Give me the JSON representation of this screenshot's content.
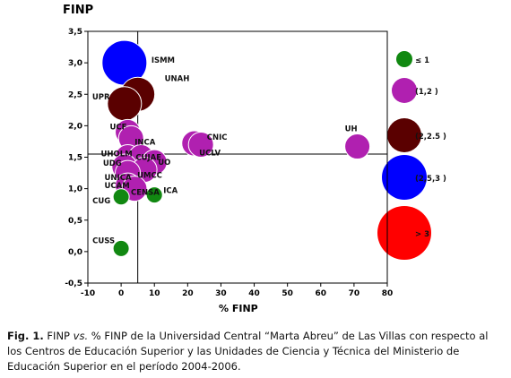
{
  "chart_data": {
    "type": "scatter",
    "ylabel": "FINP",
    "xlabel": "% FINP",
    "xlim": [
      -10,
      80
    ],
    "ylim": [
      -0.5,
      3.5
    ],
    "xticks": [
      "-10",
      "0",
      "10",
      "20",
      "30",
      "40",
      "50",
      "60",
      "70",
      "80"
    ],
    "yticks": [
      "-0,5",
      "0,0",
      "0,5",
      "1,0",
      "1,5",
      "2,0",
      "2,5",
      "3,0",
      "3,5"
    ],
    "reference_lines": {
      "x": 5,
      "y": 1.55
    },
    "points": [
      {
        "label": "ISMM",
        "x": 1,
        "y": 3.0,
        "color": "#0000ff",
        "size_class": 4
      },
      {
        "label": "UNAH",
        "x": 5,
        "y": 2.5,
        "color": "#5a0000",
        "size_class": 3
      },
      {
        "label": "UPR",
        "x": 1,
        "y": 2.35,
        "color": "#5a0000",
        "size_class": 3
      },
      {
        "label": "UCF",
        "x": 2,
        "y": 1.9,
        "color": "#b020b0",
        "size_class": 2
      },
      {
        "label": "INCA",
        "x": 3,
        "y": 1.8,
        "color": "#b020b0",
        "size_class": 2
      },
      {
        "label": "CNIC",
        "x": 22,
        "y": 1.72,
        "color": "#b020b0",
        "size_class": 2
      },
      {
        "label": "UCLV",
        "x": 24,
        "y": 1.7,
        "color": "#b020b0",
        "size_class": 2
      },
      {
        "label": "UH",
        "x": 71,
        "y": 1.67,
        "color": "#b020b0",
        "size_class": 2
      },
      {
        "label": "UHOLM",
        "x": 2,
        "y": 1.5,
        "color": "#b020b0",
        "size_class": 2
      },
      {
        "label": "CUJAE",
        "x": 6,
        "y": 1.5,
        "color": "#b020b0",
        "size_class": 2
      },
      {
        "label": "UO",
        "x": 10,
        "y": 1.42,
        "color": "#b020b0",
        "size_class": 2
      },
      {
        "label": "UDG",
        "x": 1,
        "y": 1.35,
        "color": "#b020b0",
        "size_class": 2
      },
      {
        "label": "UMCC",
        "x": 7,
        "y": 1.3,
        "color": "#b020b0",
        "size_class": 2
      },
      {
        "label": "UNICA",
        "x": 2,
        "y": 1.25,
        "color": "#b020b0",
        "size_class": 2
      },
      {
        "label": "UCAM",
        "x": 2,
        "y": 1.05,
        "color": "#b020b0",
        "size_class": 2
      },
      {
        "label": "CENSA",
        "x": 4,
        "y": 1.0,
        "color": "#b020b0",
        "size_class": 2
      },
      {
        "label": "ICA",
        "x": 10,
        "y": 0.9,
        "color": "#118811",
        "size_class": 1
      },
      {
        "label": "CUG",
        "x": 0,
        "y": 0.87,
        "color": "#118811",
        "size_class": 1
      },
      {
        "label": "CUSS",
        "x": 0,
        "y": 0.05,
        "color": "#118811",
        "size_class": 1
      }
    ],
    "legend": {
      "placement": "right",
      "entries": [
        {
          "label": "≤ 1",
          "color": "#118811",
          "size_class": 1
        },
        {
          "label": "(1,2 )",
          "color": "#b020b0",
          "size_class": 2
        },
        {
          "label": "(2,2.5 )",
          "color": "#5a0000",
          "size_class": 3
        },
        {
          "label": "(2,5,3 )",
          "color": "#0000ff",
          "size_class": 4
        },
        {
          "label": "> 3",
          "color": "#ff0000",
          "size_class": 5
        }
      ]
    }
  },
  "caption": {
    "prefix": "Fig. 1.",
    "part1": " FINP ",
    "vs": "vs.",
    "part2": " % FINP de la Universidad Central “Marta Abreu” de Las Villas con respecto al los Centros de Educación Superior y las Unidades de Ciencia y Técnica del Ministerio de Educación Superior en el período 2004-2006."
  }
}
